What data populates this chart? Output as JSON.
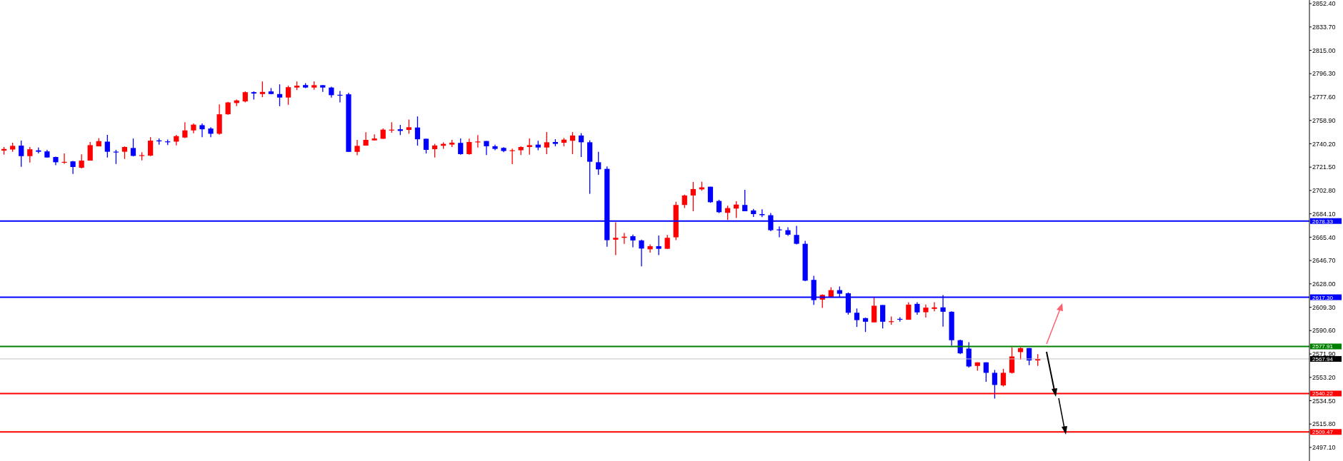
{
  "chart_data": {
    "type": "candlestick",
    "categories": [
      null,
      null,
      null,
      null,
      null,
      null,
      null,
      null,
      null,
      null,
      null,
      null,
      null,
      null,
      null,
      null,
      null,
      null,
      null,
      null,
      null,
      null,
      null,
      null,
      null,
      null,
      null,
      null,
      null,
      null,
      null,
      null,
      null,
      null,
      null,
      null,
      null,
      null,
      null,
      null,
      null,
      null,
      null,
      null,
      null,
      null,
      null,
      null,
      null,
      null,
      null,
      null,
      null,
      null,
      null,
      null,
      null,
      null,
      null,
      null,
      null,
      null,
      null,
      null,
      null,
      null,
      null,
      null,
      null,
      null,
      null,
      null,
      null,
      null,
      null,
      null,
      null,
      null,
      null,
      null,
      null,
      null,
      null,
      null,
      null,
      null,
      null,
      null,
      null,
      null,
      null,
      null,
      null,
      null,
      null,
      null,
      null,
      null,
      null,
      null,
      null,
      null,
      null,
      null,
      null,
      null,
      null,
      null,
      null,
      null,
      null,
      null,
      null,
      null,
      null,
      null,
      null,
      null,
      null,
      null,
      null,
      null,
      null,
      null,
      null,
      null,
      null,
      null,
      null,
      null,
      null,
      null,
      null,
      null,
      null,
      null,
      null,
      null,
      null,
      null,
      null,
      null,
      null,
      null,
      null,
      null,
      null,
      null,
      null,
      null,
      null,
      null
    ],
    "ohlc": [
      [
        2734.7,
        2737.6,
        2731.5,
        2736.0
      ],
      [
        2735.6,
        2741.0,
        2733.8,
        2738.5
      ],
      [
        2738.7,
        2742.7,
        2721.7,
        2730.3
      ],
      [
        2730.3,
        2737.6,
        2725.2,
        2735.8
      ],
      [
        2734.9,
        2737.2,
        2732.4,
        2733.8
      ],
      [
        2734.1,
        2735.3,
        2729.2,
        2729.2
      ],
      [
        2729.6,
        2729.9,
        2723.1,
        2725.4
      ],
      [
        2725.2,
        2732.4,
        2724.2,
        2725.7
      ],
      [
        2726.1,
        2726.5,
        2716.0,
        2721.6
      ],
      [
        2721.0,
        2731.8,
        2720.4,
        2726.7
      ],
      [
        2726.7,
        2741.6,
        2726.7,
        2739.1
      ],
      [
        2738.1,
        2744.8,
        2738.1,
        2742.3
      ],
      [
        2741.9,
        2747.3,
        2729.2,
        2733.8
      ],
      [
        2733.9,
        2735.3,
        2724.0,
        2733.8
      ],
      [
        2733.8,
        2738.1,
        2728.0,
        2737.6
      ],
      [
        2736.8,
        2744.4,
        2730.1,
        2730.5
      ],
      [
        2731.1,
        2733.4,
        2726.9,
        2731.1
      ],
      [
        2730.7,
        2745.5,
        2730.3,
        2742.7
      ],
      [
        2742.9,
        2744.4,
        2739.5,
        2742.1
      ],
      [
        2742.1,
        2743.6,
        2739.1,
        2741.4
      ],
      [
        2741.9,
        2747.3,
        2738.9,
        2746.3
      ],
      [
        2745.2,
        2757.5,
        2744.8,
        2750.9
      ],
      [
        2750.9,
        2756.4,
        2748.6,
        2755.5
      ],
      [
        2755.1,
        2756.4,
        2745.5,
        2751.8
      ],
      [
        2752.4,
        2753.5,
        2745.5,
        2748.2
      ],
      [
        2748.2,
        2771.8,
        2747.5,
        2763.8
      ],
      [
        2763.8,
        2773.7,
        2763.4,
        2773.3
      ],
      [
        2772.8,
        2775.6,
        2770.3,
        2774.9
      ],
      [
        2774.1,
        2782.1,
        2773.3,
        2781.5
      ],
      [
        2781.5,
        2782.1,
        2775.6,
        2780.4
      ],
      [
        2780.0,
        2790.1,
        2777.5,
        2781.7
      ],
      [
        2782.1,
        2784.8,
        2779.8,
        2780.0
      ],
      [
        2780.0,
        2787.8,
        2770.3,
        2777.2
      ],
      [
        2777.2,
        2786.7,
        2771.4,
        2785.5
      ],
      [
        2785.2,
        2790.1,
        2783.2,
        2786.7
      ],
      [
        2787.2,
        2788.8,
        2784.8,
        2785.2
      ],
      [
        2785.2,
        2790.1,
        2783.4,
        2787.1
      ],
      [
        2787.1,
        2787.2,
        2781.7,
        2785.2
      ],
      [
        2785.2,
        2785.9,
        2777.2,
        2779.1
      ],
      [
        2779.4,
        2782.5,
        2773.3,
        2779.1
      ],
      [
        2779.8,
        2781.0,
        2733.7,
        2733.7
      ],
      [
        2733.7,
        2743.3,
        2731.1,
        2738.5
      ],
      [
        2738.7,
        2749.5,
        2738.7,
        2743.3
      ],
      [
        2742.9,
        2747.8,
        2742.9,
        2744.4
      ],
      [
        2744.2,
        2752.4,
        2744.2,
        2751.5
      ],
      [
        2750.9,
        2757.5,
        2749.0,
        2751.5
      ],
      [
        2751.8,
        2755.3,
        2747.1,
        2750.5
      ],
      [
        2751.3,
        2759.6,
        2748.2,
        2753.4
      ],
      [
        2753.2,
        2762.1,
        2738.7,
        2743.8
      ],
      [
        2744.2,
        2744.2,
        2732.4,
        2735.3
      ],
      [
        2735.9,
        2740.1,
        2729.2,
        2738.8
      ],
      [
        2738.6,
        2741.4,
        2736.1,
        2740.1
      ],
      [
        2739.5,
        2743.3,
        2737.6,
        2741.1
      ],
      [
        2740.9,
        2744.5,
        2731.5,
        2731.9
      ],
      [
        2731.9,
        2744.3,
        2731.5,
        2741.6
      ],
      [
        2741.4,
        2747.1,
        2737.2,
        2742.0
      ],
      [
        2742.4,
        2742.4,
        2731.2,
        2738.2
      ],
      [
        2738.2,
        2739.5,
        2735.0,
        2736.1
      ],
      [
        2736.9,
        2737.4,
        2733.4,
        2734.4
      ],
      [
        2734.8,
        2736.3,
        2723.9,
        2735.0
      ],
      [
        2735.0,
        2738.2,
        2731.2,
        2737.6
      ],
      [
        2737.6,
        2744.5,
        2731.5,
        2739.1
      ],
      [
        2739.5,
        2742.6,
        2735.0,
        2737.2
      ],
      [
        2737.2,
        2749.6,
        2731.9,
        2741.4
      ],
      [
        2741.6,
        2743.9,
        2738.2,
        2740.1
      ],
      [
        2741.0,
        2744.8,
        2738.2,
        2743.5
      ],
      [
        2742.6,
        2749.6,
        2731.9,
        2746.8
      ],
      [
        2746.8,
        2748.7,
        2729.6,
        2741.4
      ],
      [
        2741.4,
        2743.0,
        2700.1,
        2725.8
      ],
      [
        2725.4,
        2733.8,
        2715.3,
        2719.7
      ],
      [
        2720.1,
        2722.0,
        2657.7,
        2663.0
      ],
      [
        2663.4,
        2677.3,
        2651.0,
        2664.9
      ],
      [
        2664.9,
        2668.7,
        2660.1,
        2665.8
      ],
      [
        2666.2,
        2667.4,
        2657.3,
        2662.8
      ],
      [
        2662.8,
        2663.4,
        2642.0,
        2656.3
      ],
      [
        2655.7,
        2659.6,
        2653.1,
        2658.2
      ],
      [
        2658.2,
        2666.8,
        2651.0,
        2656.1
      ],
      [
        2656.1,
        2667.2,
        2656.1,
        2664.9
      ],
      [
        2665.3,
        2693.8,
        2663.0,
        2691.2
      ],
      [
        2691.2,
        2699.5,
        2688.7,
        2698.8
      ],
      [
        2698.8,
        2709.6,
        2686.2,
        2703.9
      ],
      [
        2703.7,
        2709.8,
        2702.6,
        2705.3
      ],
      [
        2705.8,
        2705.8,
        2692.9,
        2693.4
      ],
      [
        2694.4,
        2695.4,
        2684.7,
        2685.4
      ],
      [
        2684.9,
        2690.6,
        2679.2,
        2688.7
      ],
      [
        2688.3,
        2694.2,
        2680.7,
        2691.5
      ],
      [
        2691.2,
        2703.3,
        2686.2,
        2686.2
      ],
      [
        2686.8,
        2688.1,
        2681.6,
        2683.9
      ],
      [
        2683.9,
        2687.7,
        2681.4,
        2683.0
      ],
      [
        2683.0,
        2684.7,
        2670.2,
        2671.0
      ],
      [
        2671.6,
        2674.0,
        2665.3,
        2671.0
      ],
      [
        2671.0,
        2673.3,
        2666.4,
        2667.4
      ],
      [
        2667.2,
        2674.4,
        2659.6,
        2660.1
      ],
      [
        2660.1,
        2662.4,
        2630.2,
        2630.6
      ],
      [
        2631.2,
        2634.4,
        2611.2,
        2615.0
      ],
      [
        2615.4,
        2619.6,
        2608.7,
        2619.2
      ],
      [
        2617.7,
        2625.3,
        2617.3,
        2623.0
      ],
      [
        2623.0,
        2625.9,
        2617.3,
        2620.1
      ],
      [
        2620.5,
        2621.1,
        2603.4,
        2604.9
      ],
      [
        2604.9,
        2608.3,
        2593.5,
        2599.0
      ],
      [
        2600.6,
        2601.0,
        2589.5,
        2597.7
      ],
      [
        2597.2,
        2617.7,
        2597.2,
        2610.5
      ],
      [
        2611.1,
        2611.1,
        2592.4,
        2597.7
      ],
      [
        2597.7,
        2601.9,
        2595.3,
        2598.1
      ],
      [
        2600.0,
        2601.3,
        2597.7,
        2599.6
      ],
      [
        2599.3,
        2613.3,
        2599.3,
        2611.4
      ],
      [
        2612.0,
        2613.3,
        2603.3,
        2605.2
      ],
      [
        2605.3,
        2611.4,
        2601.0,
        2609.0
      ],
      [
        2608.0,
        2613.3,
        2606.1,
        2609.2
      ],
      [
        2609.2,
        2619.1,
        2593.7,
        2605.7
      ],
      [
        2605.7,
        2606.1,
        2578.5,
        2582.9
      ],
      [
        2582.9,
        2583.3,
        2571.8,
        2572.4
      ],
      [
        2576.2,
        2581.4,
        2561.0,
        2561.9
      ],
      [
        2562.3,
        2565.2,
        2558.5,
        2565.2
      ],
      [
        2565.2,
        2565.2,
        2549.6,
        2556.8
      ],
      [
        2556.8,
        2559.1,
        2536.2,
        2547.1
      ],
      [
        2546.7,
        2560.0,
        2545.8,
        2556.8
      ],
      [
        2556.8,
        2577.2,
        2556.2,
        2569.9
      ],
      [
        2573.4,
        2577.2,
        2567.3,
        2576.6
      ],
      [
        2576.6,
        2576.6,
        2562.9,
        2566.7
      ],
      [
        2566.7,
        2571.8,
        2562.3,
        2568.0
      ],
      null,
      null,
      null,
      null,
      null,
      null,
      null,
      null,
      null,
      null,
      null,
      null,
      null,
      null,
      null,
      null,
      null,
      null,
      null,
      null,
      null,
      null,
      null,
      null,
      null,
      null,
      null,
      null,
      null,
      null,
      null
    ],
    "colors": [
      "#ff0000",
      "#ff0000",
      "#0000ff",
      "#ff0000",
      "#0000ff",
      "#0000ff",
      "#0000ff",
      "#ff0000",
      "#0000ff",
      "#ff0000",
      "#ff0000",
      "#ff0000",
      "#0000ff",
      "#0000ff",
      "#ff0000",
      "#0000ff",
      "#ff0000",
      "#ff0000",
      "#0000ff",
      "#0000ff",
      "#ff0000",
      "#ff0000",
      "#ff0000",
      "#0000ff",
      "#0000ff",
      "#ff0000",
      "#ff0000",
      "#ff0000",
      "#ff0000",
      "#0000ff",
      "#ff0000",
      "#0000ff",
      "#0000ff",
      "#ff0000",
      "#ff0000",
      "#0000ff",
      "#ff0000",
      "#0000ff",
      "#0000ff",
      "#0000ff",
      "#0000ff",
      "#ff0000",
      "#ff0000",
      "#ff0000",
      "#ff0000",
      "#ff0000",
      "#0000ff",
      "#ff0000",
      "#0000ff",
      "#0000ff",
      "#ff0000",
      "#ff0000",
      "#ff0000",
      "#0000ff",
      "#ff0000",
      "#ff0000",
      "#0000ff",
      "#0000ff",
      "#0000ff",
      "#ff0000",
      "#ff0000",
      "#ff0000",
      "#0000ff",
      "#ff0000",
      "#0000ff",
      "#ff0000",
      "#ff0000",
      "#0000ff",
      "#0000ff",
      "#0000ff",
      "#0000ff",
      "#ff0000",
      "#ff0000",
      "#0000ff",
      "#0000ff",
      "#ff0000",
      "#0000ff",
      "#ff0000",
      "#ff0000",
      "#ff0000",
      "#ff0000",
      "#ff0000",
      "#0000ff",
      "#0000ff",
      "#ff0000",
      "#ff0000",
      "#0000ff",
      "#0000ff",
      "#0000ff",
      "#0000ff",
      "#0000ff",
      "#0000ff",
      "#0000ff",
      "#0000ff",
      "#0000ff",
      "#ff0000",
      "#ff0000",
      "#0000ff",
      "#0000ff",
      "#0000ff",
      "#0000ff",
      "#ff0000",
      "#0000ff",
      "#ff0000",
      "#0000ff",
      "#ff0000",
      "#0000ff",
      "#ff0000",
      "#ff0000",
      "#0000ff",
      "#0000ff",
      "#0000ff",
      "#0000ff",
      "#ff0000",
      "#0000ff",
      "#0000ff",
      "#ff0000",
      "#ff0000",
      "#ff0000",
      "#0000ff",
      "#ff0000",
      null,
      null,
      null,
      null,
      null,
      null,
      null,
      null,
      null,
      null,
      null,
      null,
      null,
      null,
      null,
      null,
      null,
      null,
      null,
      null,
      null,
      null,
      null,
      null,
      null,
      null,
      null,
      null,
      null,
      null,
      null
    ],
    "ylim": [
      2486.2,
      2855.3
    ],
    "yticks": [
      {
        "value": 2852.4,
        "label": "2852.40"
      },
      {
        "value": 2833.7,
        "label": "2833.70"
      },
      {
        "value": 2815.0,
        "label": "2815.00"
      },
      {
        "value": 2796.3,
        "label": "2796.30"
      },
      {
        "value": 2777.6,
        "label": "2777.60"
      },
      {
        "value": 2758.9,
        "label": "2758.90"
      },
      {
        "value": 2740.2,
        "label": "2740.20"
      },
      {
        "value": 2721.5,
        "label": "2721.50"
      },
      {
        "value": 2702.8,
        "label": "2702.80"
      },
      {
        "value": 2684.1,
        "label": "2684.10"
      },
      {
        "value": 2665.4,
        "label": "2665.40"
      },
      {
        "value": 2646.7,
        "label": "2646.70"
      },
      {
        "value": 2628.0,
        "label": "2628.00"
      },
      {
        "value": 2609.3,
        "label": "2609.30"
      },
      {
        "value": 2590.6,
        "label": "2590.60"
      },
      {
        "value": 2571.9,
        "label": "2571.90"
      },
      {
        "value": 2553.2,
        "label": "2553.20"
      },
      {
        "value": 2534.5,
        "label": "2534.50"
      },
      {
        "value": 2515.8,
        "label": "2515.80"
      },
      {
        "value": 2497.1,
        "label": "2497.10"
      }
    ],
    "tick_labels": "y",
    "ref_lines": [
      {
        "axis": "y",
        "value": 2678.33,
        "label": "2678.33",
        "color": "#0000ff"
      },
      {
        "axis": "y",
        "value": 2617.3,
        "label": "2617.30",
        "color": "#0000ff"
      },
      {
        "axis": "y",
        "value": 2577.91,
        "label": "2577.91",
        "color": "#008000"
      },
      {
        "axis": "y",
        "value": 2567.94,
        "label": "2567.94",
        "color": "#c0c0c0"
      },
      {
        "axis": "y",
        "value": 2540.22,
        "label": "2540.22",
        "color": "#ff0000"
      },
      {
        "axis": "y",
        "value": 2509.47,
        "label": "2509.47",
        "color": "#ff0000"
      }
    ]
  }
}
